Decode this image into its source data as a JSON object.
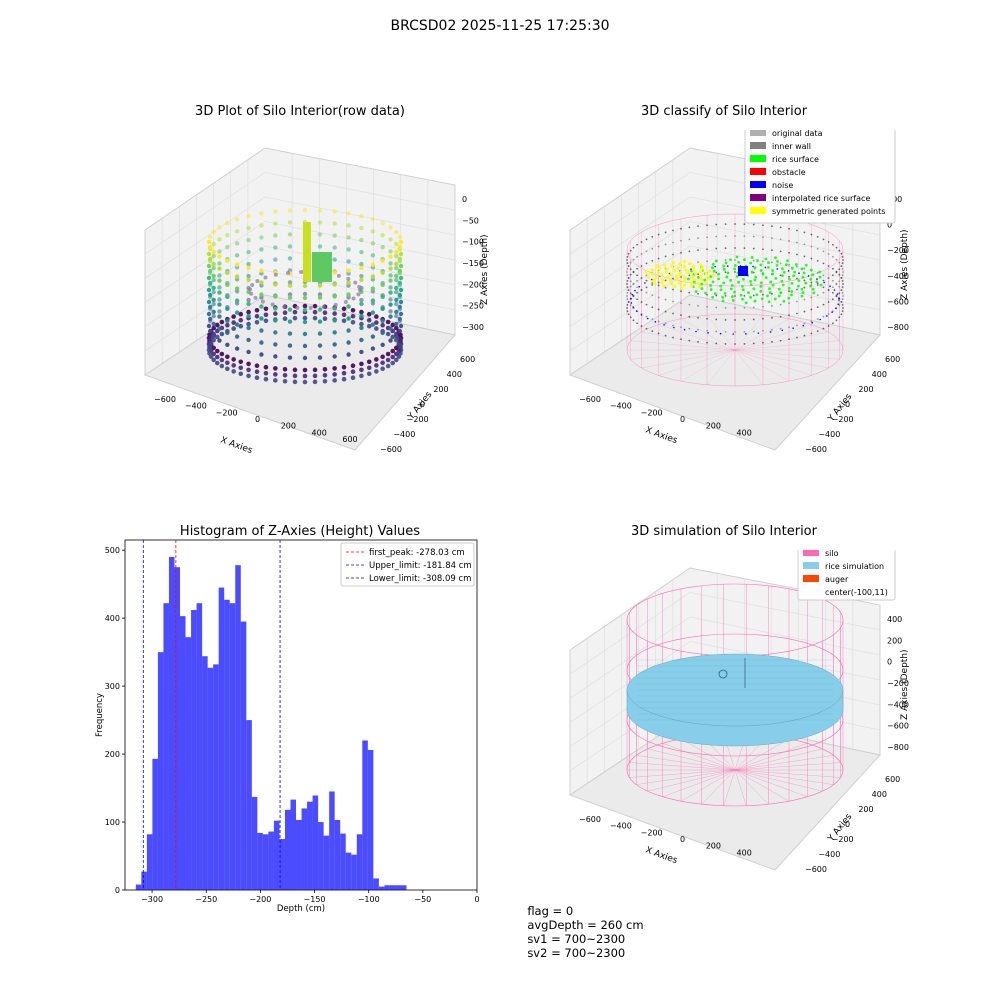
{
  "suptitle": "BRCSD02 2025-11-25 17:25:30",
  "colors": {
    "hist_bar": "#0000ff",
    "first_peak_line": "#ff0000",
    "limit_line": "#0000ff",
    "silo_mesh": "#ff69b4",
    "rice": "#87ceeb",
    "auger": "#ff4500"
  },
  "chart_data": [
    {
      "type": "scatter",
      "title": "3D Plot of Silo Interior(row data)",
      "xlabel": "X Axies",
      "ylabel": "Y Axies",
      "zlabel": "Z Axies (Depth)",
      "x_ticks": [
        "−600",
        "−400",
        "−200",
        "0",
        "200",
        "400",
        "600"
      ],
      "y_ticks": [
        "−600",
        "−400",
        "−200",
        "0",
        "200",
        "400",
        "600"
      ],
      "z_ticks": [
        "0",
        "−50",
        "−100",
        "−150",
        "−200",
        "−250",
        "−300"
      ],
      "colormap": "viridis"
    },
    {
      "type": "scatter",
      "title": "3D classify of Silo Interior",
      "xlabel": "X Axies",
      "ylabel": "Y Axies",
      "zlabel": "Z Axies (Depth)",
      "x_ticks": [
        "−600",
        "−400",
        "−200",
        "0",
        "200",
        "400"
      ],
      "y_ticks": [
        "−600",
        "−400",
        "−200",
        "0",
        "200",
        "400",
        "600"
      ],
      "z_ticks": [
        "200",
        "0",
        "−200",
        "−400",
        "−600",
        "−800"
      ],
      "legend": [
        {
          "label": "original data",
          "color": "#b0b0b0"
        },
        {
          "label": "inner wall",
          "color": "#808080"
        },
        {
          "label": "rice surface",
          "color": "#00ff00"
        },
        {
          "label": "obstacle",
          "color": "#ff0000"
        },
        {
          "label": "noise",
          "color": "#0000ff"
        },
        {
          "label": "interpolated rice surface",
          "color": "#800080"
        },
        {
          "label": "symmetric generated points",
          "color": "#ffff00"
        }
      ]
    },
    {
      "type": "bar",
      "title": "Histogram of Z-Axies (Height) Values",
      "xlabel": "Depth (cm)",
      "ylabel": "Frequency",
      "xlim": [
        -325,
        0
      ],
      "ylim": [
        0,
        515
      ],
      "x_ticks": [
        -300,
        -250,
        -200,
        -150,
        -100,
        -50,
        0
      ],
      "x_tick_labels": [
        "−300",
        "−250",
        "−200",
        "−150",
        "−100",
        "−50",
        "0"
      ],
      "y_ticks": [
        0,
        100,
        200,
        300,
        400,
        500
      ],
      "y_tick_labels": [
        "0",
        "100",
        "200",
        "300",
        "400",
        "500"
      ],
      "bin_start": -315,
      "bin_width": 5.1,
      "values": [
        8,
        27,
        82,
        193,
        350,
        422,
        490,
        475,
        403,
        372,
        412,
        422,
        344,
        327,
        332,
        445,
        427,
        422,
        478,
        395,
        250,
        137,
        84,
        82,
        86,
        102,
        75,
        118,
        133,
        103,
        120,
        130,
        139,
        100,
        80,
        145,
        103,
        83,
        55,
        52,
        82,
        220,
        206,
        17,
        5,
        7,
        7,
        7,
        7
      ],
      "vlines": [
        {
          "label": "first_peak: -278.03 cm",
          "x": -278.03,
          "color": "#ff0000"
        },
        {
          "label": "Upper_limit: -181.84 cm",
          "x": -181.84,
          "color": "#0000ff"
        },
        {
          "label": "Lower_limit: -308.09 cm",
          "x": -308.09,
          "color": "#0000ff"
        }
      ]
    },
    {
      "type": "scatter",
      "title": "3D simulation of Silo Interior",
      "xlabel": "X Axies",
      "ylabel": "Y Axies",
      "zlabel": "Z Axies (Depth)",
      "x_ticks": [
        "−600",
        "−400",
        "−200",
        "0",
        "200",
        "400"
      ],
      "y_ticks": [
        "−600",
        "−400",
        "−200",
        "0",
        "200",
        "400",
        "600"
      ],
      "z_ticks": [
        "400",
        "200",
        "0",
        "−200",
        "−400",
        "−600",
        "−800"
      ],
      "legend": [
        {
          "label": "silo",
          "color": "#ff69b4"
        },
        {
          "label": "rice simulation",
          "color": "#87ceeb"
        },
        {
          "label": "auger",
          "color": "#ff4500"
        },
        {
          "label": "center(-100,11)",
          "color": ""
        }
      ]
    }
  ],
  "footer": {
    "flag": "flag = 0",
    "avg_depth": "avgDepth = 260 cm",
    "sv1": "sv1 = 700~2300",
    "sv2": "sv2 = 700~2300"
  }
}
